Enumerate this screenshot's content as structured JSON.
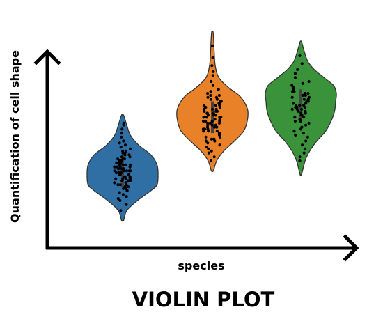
{
  "chart_data": {
    "type": "violin",
    "title": "VIOLIN PLOT",
    "xlabel": "species",
    "ylabel": "Quantification of cell shape",
    "grid": false,
    "legend": "none",
    "ylim": [
      0,
      100
    ],
    "series": [
      {
        "color": "#2f6fa3",
        "min": 10,
        "max": 63,
        "median": 35,
        "width_profile": [
          [
            10,
            0.03
          ],
          [
            15,
            0.12
          ],
          [
            20,
            0.42
          ],
          [
            25,
            0.8
          ],
          [
            28,
            0.97
          ],
          [
            33,
            1.0
          ],
          [
            38,
            0.97
          ],
          [
            43,
            0.8
          ],
          [
            48,
            0.45
          ],
          [
            53,
            0.22
          ],
          [
            58,
            0.12
          ],
          [
            63,
            0.03
          ]
        ],
        "points": [
          15,
          18,
          20,
          21,
          22,
          23,
          24,
          25,
          25,
          26,
          26,
          27,
          27,
          28,
          28,
          28,
          29,
          29,
          29,
          30,
          30,
          30,
          31,
          31,
          31,
          31,
          32,
          32,
          32,
          32,
          33,
          33,
          33,
          33,
          34,
          34,
          34,
          34,
          35,
          35,
          35,
          35,
          35,
          36,
          36,
          36,
          36,
          37,
          37,
          37,
          37,
          38,
          38,
          38,
          38,
          39,
          39,
          39,
          40,
          40,
          40,
          41,
          41,
          41,
          42,
          42,
          43,
          43,
          44,
          44,
          45,
          45,
          46,
          47,
          48,
          49,
          50,
          52,
          54,
          56,
          58,
          59
        ]
      },
      {
        "color": "#e88128",
        "min": 35,
        "max": 105,
        "median": 62,
        "width_profile": [
          [
            35,
            0.03
          ],
          [
            40,
            0.12
          ],
          [
            45,
            0.32
          ],
          [
            50,
            0.62
          ],
          [
            55,
            0.88
          ],
          [
            60,
            0.98
          ],
          [
            65,
            1.0
          ],
          [
            69,
            0.92
          ],
          [
            73,
            0.75
          ],
          [
            77,
            0.45
          ],
          [
            82,
            0.18
          ],
          [
            88,
            0.08
          ],
          [
            95,
            0.05
          ],
          [
            100,
            0.04
          ],
          [
            105,
            0.02
          ]
        ],
        "points": [
          40,
          42,
          44,
          45,
          46,
          47,
          48,
          49,
          50,
          50,
          51,
          51,
          52,
          52,
          53,
          53,
          54,
          54,
          55,
          55,
          55,
          56,
          56,
          56,
          57,
          57,
          57,
          58,
          58,
          58,
          59,
          59,
          59,
          60,
          60,
          60,
          60,
          61,
          61,
          61,
          62,
          62,
          62,
          62,
          63,
          63,
          63,
          64,
          64,
          64,
          65,
          65,
          65,
          66,
          66,
          66,
          67,
          67,
          67,
          68,
          68,
          68,
          69,
          69,
          70,
          70,
          71,
          71,
          72,
          72,
          73,
          73,
          74,
          75,
          76,
          78,
          80,
          83,
          85,
          88,
          92,
          98
        ]
      },
      {
        "color": "#3a923a",
        "min": 33,
        "max": 100,
        "median": 68,
        "width_profile": [
          [
            33,
            0.02
          ],
          [
            40,
            0.12
          ],
          [
            45,
            0.25
          ],
          [
            50,
            0.45
          ],
          [
            55,
            0.7
          ],
          [
            60,
            0.85
          ],
          [
            65,
            0.95
          ],
          [
            70,
            0.98
          ],
          [
            74,
            1.0
          ],
          [
            78,
            0.92
          ],
          [
            82,
            0.65
          ],
          [
            86,
            0.38
          ],
          [
            90,
            0.2
          ],
          [
            95,
            0.1
          ],
          [
            100,
            0.02
          ]
        ],
        "points": [
          40,
          42,
          44,
          46,
          48,
          50,
          52,
          53,
          54,
          55,
          56,
          57,
          58,
          59,
          60,
          60,
          61,
          62,
          62,
          63,
          63,
          64,
          64,
          65,
          65,
          66,
          66,
          66,
          67,
          67,
          67,
          68,
          68,
          68,
          69,
          69,
          70,
          70,
          71,
          71,
          72,
          72,
          73,
          73,
          74,
          74,
          75,
          75,
          76,
          76,
          77,
          78,
          79,
          80,
          82,
          84,
          86,
          89,
          93
        ]
      }
    ]
  }
}
